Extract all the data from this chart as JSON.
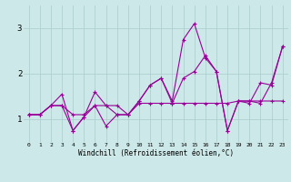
{
  "xlabel": "Windchill (Refroidissement éolien,°C)",
  "bg_color": "#cce8e8",
  "line_color": "#990099",
  "grid_color": "#aacccc",
  "xlim": [
    -0.5,
    23.5
  ],
  "ylim": [
    0.5,
    3.5
  ],
  "xticks": [
    0,
    1,
    2,
    3,
    4,
    5,
    6,
    7,
    8,
    9,
    10,
    11,
    12,
    13,
    14,
    15,
    16,
    17,
    18,
    19,
    20,
    21,
    22,
    23
  ],
  "yticks": [
    1,
    2,
    3
  ],
  "line1_x": [
    0,
    1,
    2,
    3,
    4,
    5,
    6,
    7,
    8,
    9,
    10,
    11,
    12,
    13,
    14,
    15,
    16,
    17,
    18,
    19,
    20,
    21,
    22,
    23
  ],
  "line1_y": [
    1.1,
    1.1,
    1.3,
    1.3,
    1.1,
    1.1,
    1.3,
    1.3,
    1.3,
    1.1,
    1.35,
    1.35,
    1.35,
    1.35,
    1.35,
    1.35,
    1.35,
    1.35,
    1.35,
    1.4,
    1.4,
    1.4,
    1.4,
    1.4
  ],
  "line2_x": [
    0,
    1,
    2,
    3,
    4,
    5,
    6,
    7,
    8,
    9,
    10,
    11,
    12,
    13,
    14,
    15,
    16,
    17,
    18,
    19,
    20,
    21,
    22,
    23
  ],
  "line2_y": [
    1.1,
    1.1,
    1.3,
    1.55,
    0.75,
    1.05,
    1.6,
    1.3,
    1.1,
    1.1,
    1.4,
    1.75,
    1.9,
    1.4,
    2.75,
    3.1,
    2.35,
    2.05,
    0.75,
    1.4,
    1.35,
    1.8,
    1.75,
    2.6
  ],
  "line3_x": [
    0,
    1,
    2,
    3,
    4,
    5,
    6,
    7,
    8,
    9,
    10,
    11,
    12,
    13,
    14,
    15,
    16,
    17,
    18,
    19,
    20,
    21,
    22,
    23
  ],
  "line3_y": [
    1.1,
    1.1,
    1.3,
    1.3,
    0.75,
    1.05,
    1.3,
    0.85,
    1.1,
    1.1,
    1.4,
    1.75,
    1.9,
    1.35,
    1.9,
    2.05,
    2.4,
    2.05,
    0.75,
    1.4,
    1.4,
    1.35,
    1.8,
    2.6
  ]
}
